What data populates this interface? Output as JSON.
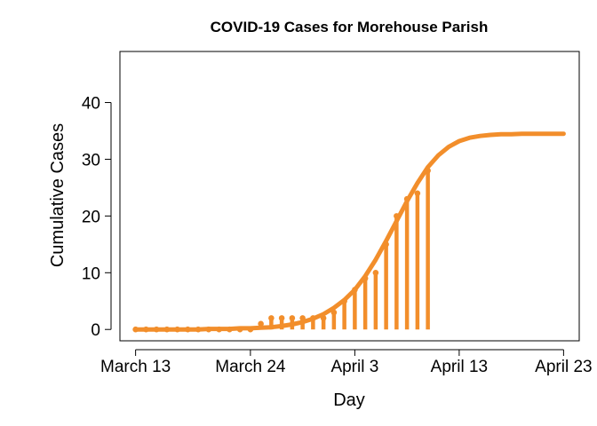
{
  "chart_data": {
    "type": "line",
    "title": "COVID-19 Cases for Morehouse Parish",
    "xlabel": "Day",
    "ylabel": "Cumulative Cases",
    "x_ticks": [
      {
        "day": 0,
        "label": "March 13"
      },
      {
        "day": 11,
        "label": "March 24"
      },
      {
        "day": 21,
        "label": "April 3"
      },
      {
        "day": 31,
        "label": "April 13"
      },
      {
        "day": 41,
        "label": "April 23"
      }
    ],
    "y_ticks": [
      0,
      10,
      20,
      30,
      40
    ],
    "xlim": [
      -1.5,
      42.5
    ],
    "ylim": [
      -2,
      49
    ],
    "color": "#F28E2B",
    "series": [
      {
        "kind": "observed",
        "x": [
          0,
          1,
          2,
          3,
          4,
          5,
          6,
          7,
          8,
          9,
          10,
          11,
          12,
          13,
          14,
          15,
          16,
          17,
          18,
          19,
          20,
          21,
          22,
          23,
          24,
          25,
          26,
          27,
          28
        ],
        "y": [
          0,
          0,
          0,
          0,
          0,
          0,
          0,
          0,
          0,
          0,
          0,
          0,
          1,
          2,
          2,
          2,
          2,
          2,
          2,
          3,
          5,
          7,
          9,
          10,
          15,
          20,
          23,
          24,
          28
        ]
      },
      {
        "kind": "fitted",
        "x": [
          0,
          1,
          2,
          3,
          4,
          5,
          6,
          7,
          8,
          9,
          10,
          11,
          12,
          13,
          14,
          15,
          16,
          17,
          18,
          19,
          20,
          21,
          22,
          23,
          24,
          25,
          26,
          27,
          28,
          29,
          30,
          31,
          32,
          33,
          34,
          35,
          36,
          37,
          38,
          39,
          40,
          41
        ],
        "y": [
          0,
          0,
          0,
          0,
          0,
          0,
          0,
          0.1,
          0.1,
          0.1,
          0.2,
          0.2,
          0.3,
          0.4,
          0.6,
          0.9,
          1.3,
          1.9,
          2.7,
          3.8,
          5.2,
          7.0,
          9.4,
          12.3,
          15.6,
          19.1,
          22.6,
          25.8,
          28.6,
          30.7,
          32.2,
          33.2,
          33.8,
          34.1,
          34.3,
          34.4,
          34.4,
          34.5,
          34.5,
          34.5,
          34.5,
          34.5
        ]
      }
    ]
  }
}
